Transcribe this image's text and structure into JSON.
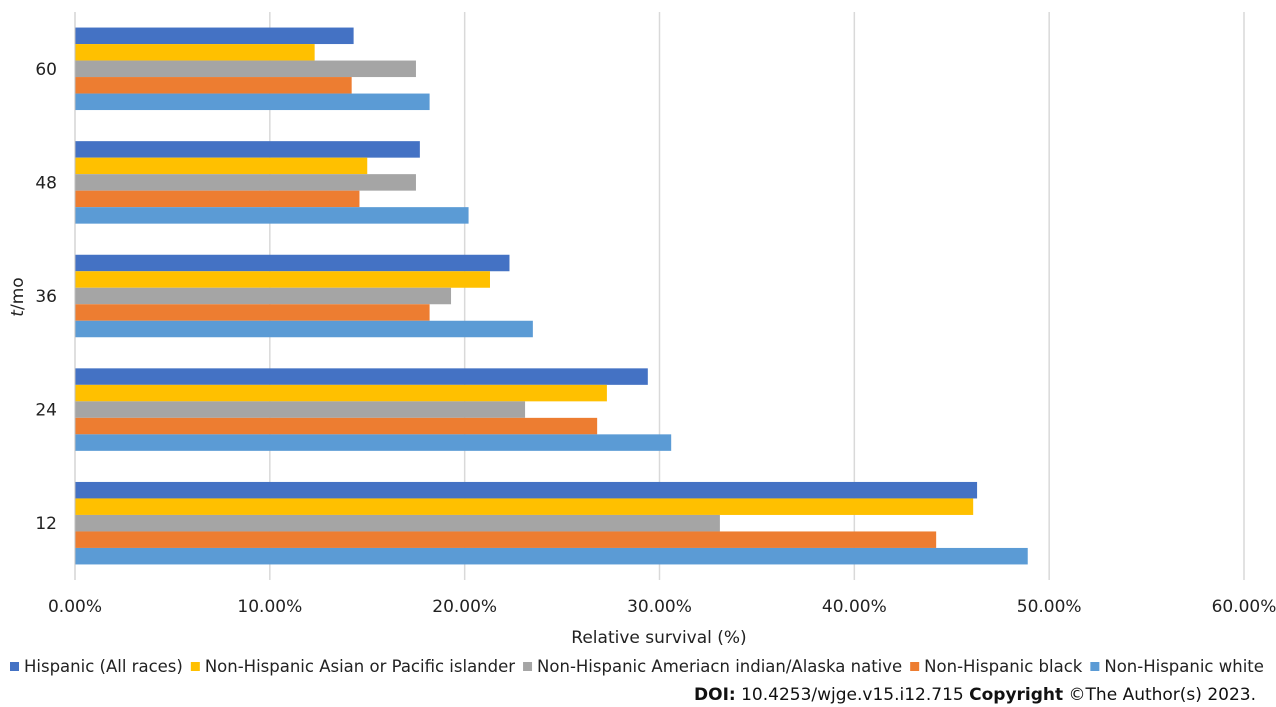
{
  "chart_data": {
    "type": "bar",
    "orientation": "horizontal",
    "categories": [
      "60",
      "48",
      "36",
      "24",
      "12"
    ],
    "series": [
      {
        "name": "Hispanic (All races)",
        "color": "#4472C4",
        "values": [
          14.3,
          17.7,
          22.3,
          29.4,
          46.3
        ]
      },
      {
        "name": "Non-Hispanic Asian or Pacific islander",
        "color": "#FFC000",
        "values": [
          12.3,
          15.0,
          21.3,
          27.3,
          46.1
        ]
      },
      {
        "name": "Non-Hispanic Ameriacn indian/Alaska native",
        "color": "#A5A5A5",
        "values": [
          17.5,
          17.5,
          19.3,
          23.1,
          33.1
        ]
      },
      {
        "name": "Non-Hispanic black",
        "color": "#ED7D31",
        "values": [
          14.2,
          14.6,
          18.2,
          26.8,
          44.2
        ]
      },
      {
        "name": "Non-Hispanic white",
        "color": "#5B9BD5",
        "values": [
          18.2,
          20.2,
          23.5,
          30.6,
          48.9
        ]
      }
    ],
    "xlabel": "Relative survival (%)",
    "ylabel_italic": "t",
    "ylabel_rest": "/mo",
    "xlim": [
      0,
      60
    ],
    "xticks": [
      "0.00%",
      "10.00%",
      "20.00%",
      "30.00%",
      "40.00%",
      "50.00%",
      "60.00%"
    ],
    "grid": "vertical",
    "legend_position": "bottom"
  },
  "footer": {
    "doi_label": "DOI:",
    "doi_value": " 10.4253/wjge.v15.i12.715 ",
    "copyright_label": "Copyright",
    "copyright_value": " ©The Author(s) 2023."
  }
}
